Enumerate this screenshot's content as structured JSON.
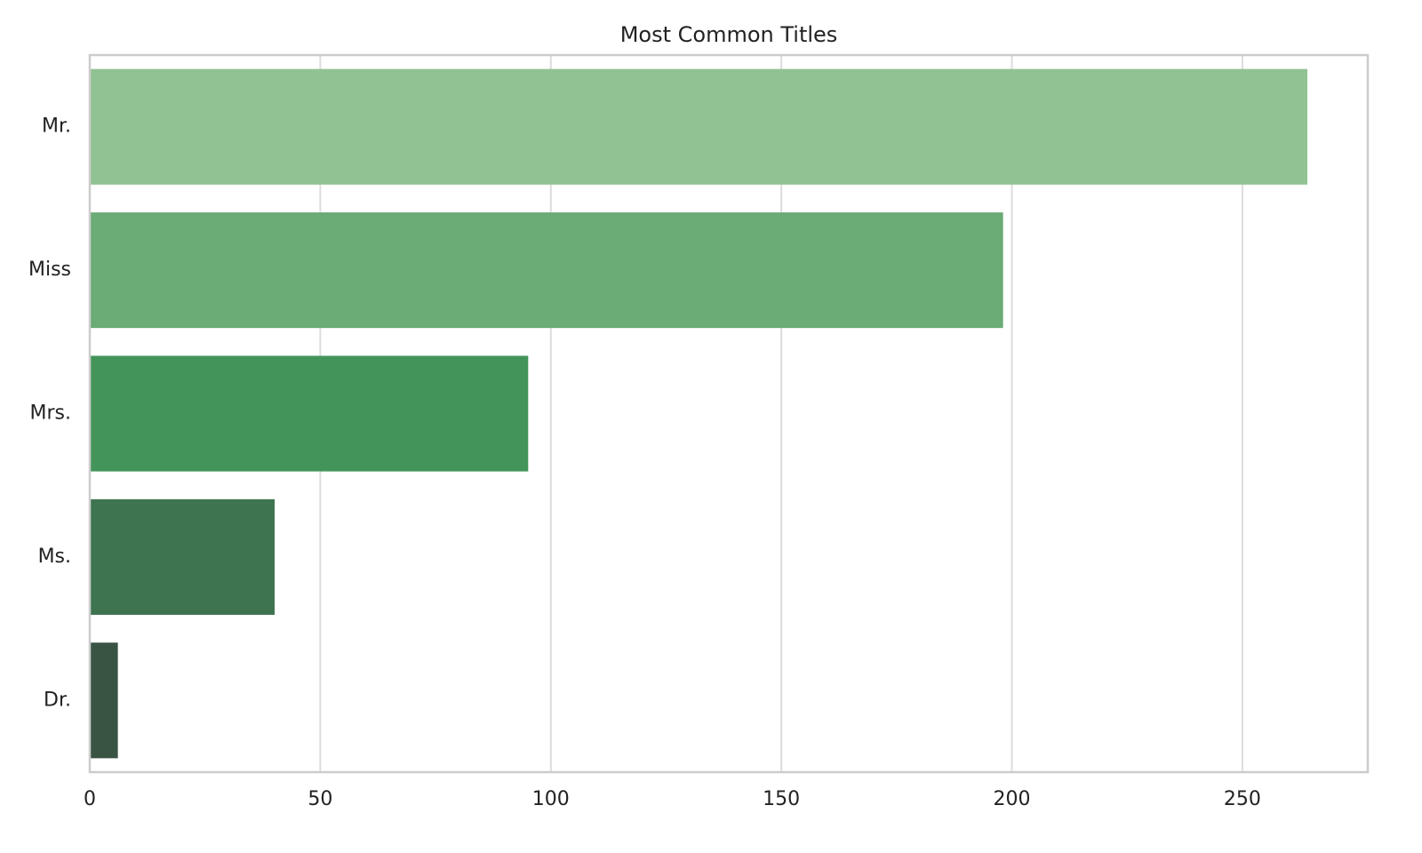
{
  "chart_data": {
    "type": "barh",
    "title": "Most Common Titles",
    "categories": [
      "Mr.",
      "Miss",
      "Mrs.",
      "Ms.",
      "Dr."
    ],
    "values": [
      264,
      198,
      95,
      40,
      6
    ],
    "colors": [
      "#91c293",
      "#6aab76",
      "#43945a",
      "#3e7450",
      "#3a5444"
    ],
    "xlim": [
      0,
      277.2
    ],
    "xticks": [
      0,
      50,
      100,
      150,
      200,
      250
    ],
    "grid": true
  }
}
